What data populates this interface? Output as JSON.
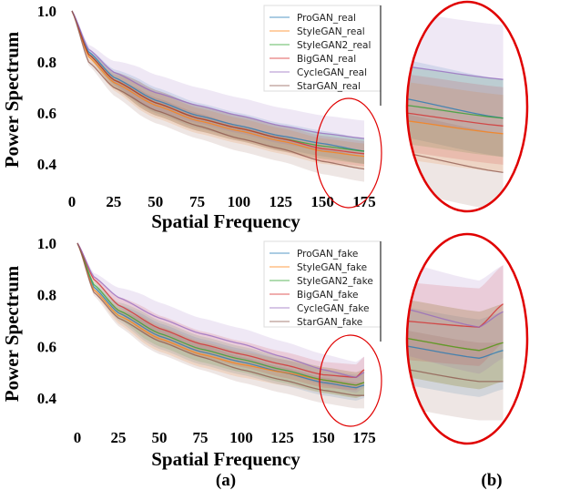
{
  "captions": {
    "a": "(a)",
    "b": "(b)"
  },
  "colors": {
    "ProGAN": "#1f77b4",
    "StyleGAN": "#ff7f0e",
    "StyleGAN2": "#2ca02c",
    "BigGAN": "#d62728",
    "CycleGAN": "#9467bd",
    "StarGAN": "#8c564b",
    "highlight": "#e00000"
  },
  "chart_data": [
    {
      "type": "line",
      "title": "",
      "xlabel": "Spatial Frequency",
      "ylabel": "Power Spectrum",
      "xlim": [
        -5,
        185
      ],
      "ylim": [
        0.31,
        1.0
      ],
      "xticks": [
        0,
        25,
        50,
        75,
        100,
        125,
        150,
        175
      ],
      "yticks": [
        0.4,
        0.6,
        0.8,
        1.0
      ],
      "ytick_labels": [
        "0.4",
        "0.6",
        "0.8",
        "1.0"
      ],
      "legend_position": "top-right",
      "x": [
        0,
        10,
        25,
        50,
        75,
        100,
        125,
        150,
        175
      ],
      "series": [
        {
          "name": "ProGAN_real",
          "color_key": "ProGAN",
          "values": [
            1.0,
            0.84,
            0.74,
            0.65,
            0.59,
            0.55,
            0.51,
            0.48,
            0.45
          ],
          "band": 0.05
        },
        {
          "name": "StyleGAN_real",
          "color_key": "StyleGAN",
          "values": [
            1.0,
            0.82,
            0.72,
            0.63,
            0.57,
            0.53,
            0.49,
            0.45,
            0.43
          ],
          "band": 0.05
        },
        {
          "name": "StyleGAN2_real",
          "color_key": "StyleGAN2",
          "values": [
            1.0,
            0.83,
            0.73,
            0.64,
            0.58,
            0.54,
            0.5,
            0.47,
            0.45
          ],
          "band": 0.05
        },
        {
          "name": "BigGAN_real",
          "color_key": "BigGAN",
          "values": [
            1.0,
            0.83,
            0.73,
            0.64,
            0.58,
            0.54,
            0.5,
            0.46,
            0.44
          ],
          "band": 0.05
        },
        {
          "name": "CycleGAN_real",
          "color_key": "CycleGAN",
          "values": [
            1.0,
            0.85,
            0.76,
            0.68,
            0.63,
            0.59,
            0.55,
            0.52,
            0.5
          ],
          "band": 0.07
        },
        {
          "name": "StarGAN_real",
          "color_key": "StarGAN",
          "values": [
            1.0,
            0.8,
            0.7,
            0.61,
            0.55,
            0.5,
            0.46,
            0.41,
            0.38
          ],
          "band": 0.05
        }
      ]
    },
    {
      "type": "line",
      "title": "",
      "xlabel": "Spatial Frequency",
      "ylabel": "Power Spectrum",
      "xlim": [
        -5,
        185
      ],
      "ylim": [
        0.31,
        1.0
      ],
      "xticks": [
        0,
        25,
        50,
        75,
        100,
        125,
        150,
        175
      ],
      "yticks": [
        0.4,
        0.6,
        0.8,
        1.0
      ],
      "ytick_labels": [
        "0.4",
        "0.6",
        "0.8",
        "1.0"
      ],
      "legend_position": "top-right",
      "x": [
        0,
        10,
        25,
        50,
        75,
        100,
        125,
        150,
        170,
        175
      ],
      "series": [
        {
          "name": "ProGAN_fake",
          "color_key": "ProGAN",
          "values": [
            1.0,
            0.83,
            0.73,
            0.64,
            0.58,
            0.54,
            0.5,
            0.46,
            0.44,
            0.45
          ],
          "band": 0.05
        },
        {
          "name": "StyleGAN_fake",
          "color_key": "StyleGAN",
          "values": [
            1.0,
            0.82,
            0.72,
            0.63,
            0.57,
            0.53,
            0.5,
            0.47,
            0.45,
            0.46
          ],
          "band": 0.05
        },
        {
          "name": "StyleGAN2_fake",
          "color_key": "StyleGAN2",
          "values": [
            1.0,
            0.84,
            0.74,
            0.65,
            0.59,
            0.55,
            0.51,
            0.47,
            0.45,
            0.46
          ],
          "band": 0.05
        },
        {
          "name": "BigGAN_fake",
          "color_key": "BigGAN",
          "values": [
            1.0,
            0.86,
            0.76,
            0.67,
            0.61,
            0.57,
            0.53,
            0.49,
            0.48,
            0.51
          ],
          "band": 0.05
        },
        {
          "name": "CycleGAN_fake",
          "color_key": "CycleGAN",
          "values": [
            1.0,
            0.87,
            0.79,
            0.71,
            0.65,
            0.61,
            0.56,
            0.51,
            0.48,
            0.5
          ],
          "band": 0.06
        },
        {
          "name": "StarGAN_fake",
          "color_key": "StarGAN",
          "values": [
            1.0,
            0.81,
            0.71,
            0.62,
            0.56,
            0.51,
            0.47,
            0.43,
            0.41,
            0.41
          ],
          "band": 0.05
        }
      ]
    }
  ],
  "zoom_panels": {
    "xlim": [
      155,
      180
    ],
    "ylim": [
      0.33,
      0.6
    ]
  }
}
